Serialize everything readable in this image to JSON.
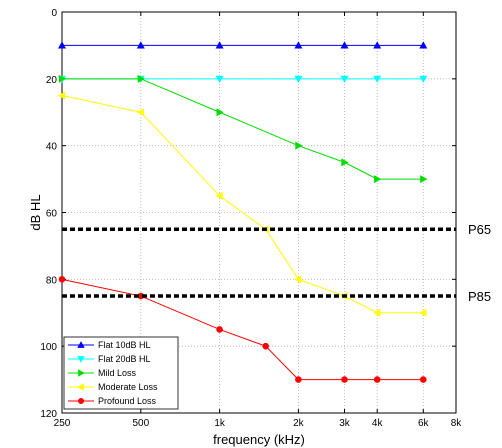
{
  "chart_data": {
    "type": "line",
    "xlabel": "frequency (kHz)",
    "ylabel": "dB HL",
    "x_scale": "log",
    "x_range": [
      250,
      8000
    ],
    "y_range": [
      0,
      120
    ],
    "y_reversed": true,
    "grid": true,
    "legend_position": "bottom-left",
    "x_ticks": [
      {
        "value": 250,
        "label": "250"
      },
      {
        "value": 500,
        "label": "500"
      },
      {
        "value": 1000,
        "label": "1k"
      },
      {
        "value": 2000,
        "label": "2k"
      },
      {
        "value": 3000,
        "label": "3k"
      },
      {
        "value": 4000,
        "label": "4k"
      },
      {
        "value": 6000,
        "label": "6k"
      },
      {
        "value": 8000,
        "label": "8k"
      }
    ],
    "y_ticks": [
      {
        "value": 0,
        "label": "0"
      },
      {
        "value": 20,
        "label": "20"
      },
      {
        "value": 40,
        "label": "40"
      },
      {
        "value": 60,
        "label": "60"
      },
      {
        "value": 80,
        "label": "80"
      },
      {
        "value": 100,
        "label": "100"
      },
      {
        "value": 120,
        "label": "120"
      }
    ],
    "series": [
      {
        "name": "Flat 10dB HL",
        "color": "#0000ff",
        "marker": "triangle-up",
        "x": [
          250,
          500,
          1000,
          2000,
          3000,
          4000,
          6000
        ],
        "y": [
          10,
          10,
          10,
          10,
          10,
          10,
          10
        ]
      },
      {
        "name": "Flat 20dB HL",
        "color": "#00ffff",
        "marker": "triangle-down",
        "x": [
          250,
          500,
          1000,
          2000,
          3000,
          4000,
          6000
        ],
        "y": [
          20,
          20,
          20,
          20,
          20,
          20,
          20
        ]
      },
      {
        "name": "Mild Loss",
        "color": "#00dd00",
        "marker": "triangle-right",
        "x": [
          250,
          500,
          1000,
          2000,
          3000,
          4000,
          6000
        ],
        "y": [
          20,
          20,
          30,
          40,
          45,
          50,
          50
        ]
      },
      {
        "name": "Moderate Loss",
        "color": "#ffff00",
        "marker": "triangle-left",
        "x": [
          250,
          500,
          1000,
          1500,
          2000,
          3000,
          4000,
          6000
        ],
        "y": [
          25,
          30,
          55,
          65,
          80,
          85,
          90,
          90
        ]
      },
      {
        "name": "Profound Loss",
        "color": "#ff0000",
        "marker": "circle",
        "x": [
          250,
          500,
          1000,
          1500,
          2000,
          3000,
          4000,
          6000
        ],
        "y": [
          80,
          85,
          95,
          100,
          110,
          110,
          110,
          110
        ]
      }
    ],
    "reference_lines": [
      {
        "label": "P65",
        "y": 65
      },
      {
        "label": "P85",
        "y": 85
      }
    ]
  }
}
